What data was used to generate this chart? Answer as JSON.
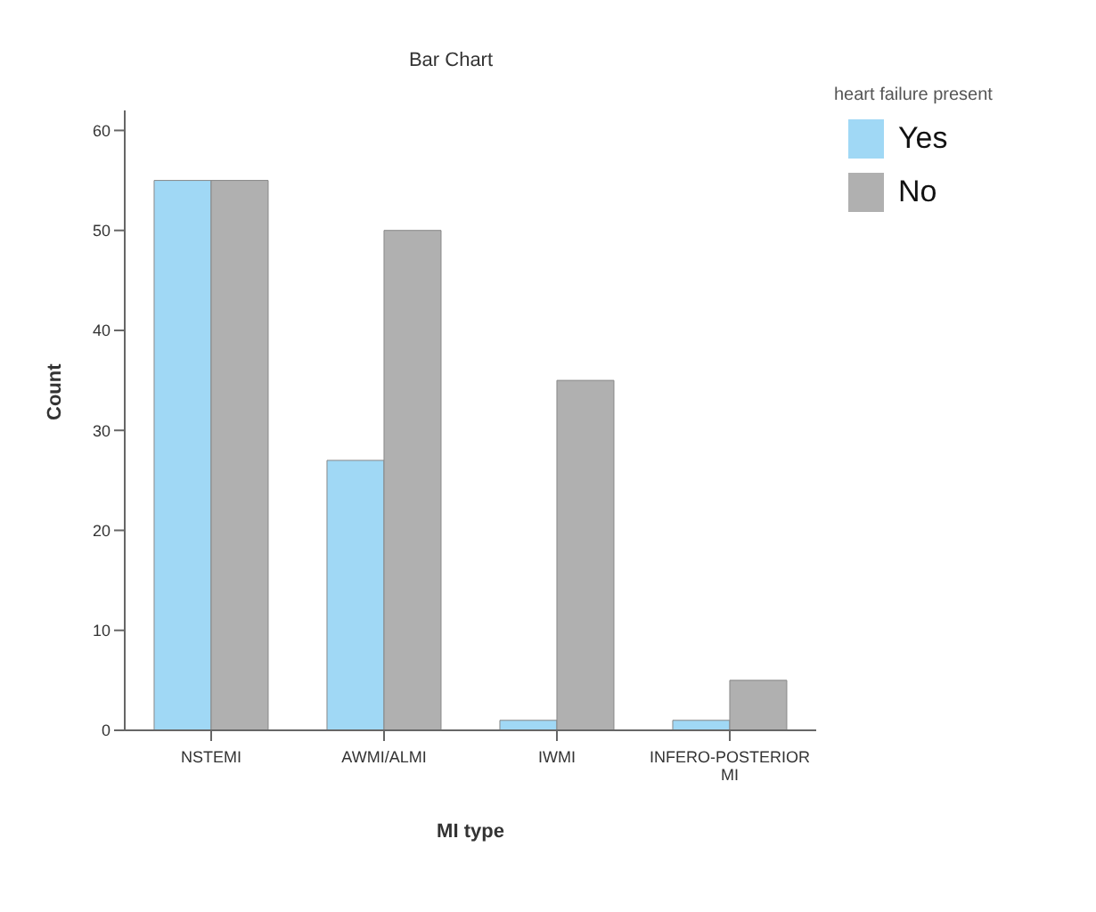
{
  "chart_data": {
    "type": "bar",
    "title": "Bar Chart",
    "xlabel": "MI type",
    "ylabel": "Count",
    "legend_title": "heart failure present",
    "categories": [
      "NSTEMI",
      "AWMI/ALMI",
      "IWMI",
      "INFERO-POSTERIOR MI"
    ],
    "series": [
      {
        "name": "Yes",
        "color": "#a0d8f5",
        "values": [
          55,
          27,
          1,
          1
        ]
      },
      {
        "name": "No",
        "color": "#b0b0b0",
        "values": [
          55,
          50,
          35,
          5
        ]
      }
    ],
    "ylim": [
      0,
      62
    ],
    "yticks": [
      0,
      10,
      20,
      30,
      40,
      50,
      60
    ],
    "grid": false,
    "legend": "top right"
  }
}
